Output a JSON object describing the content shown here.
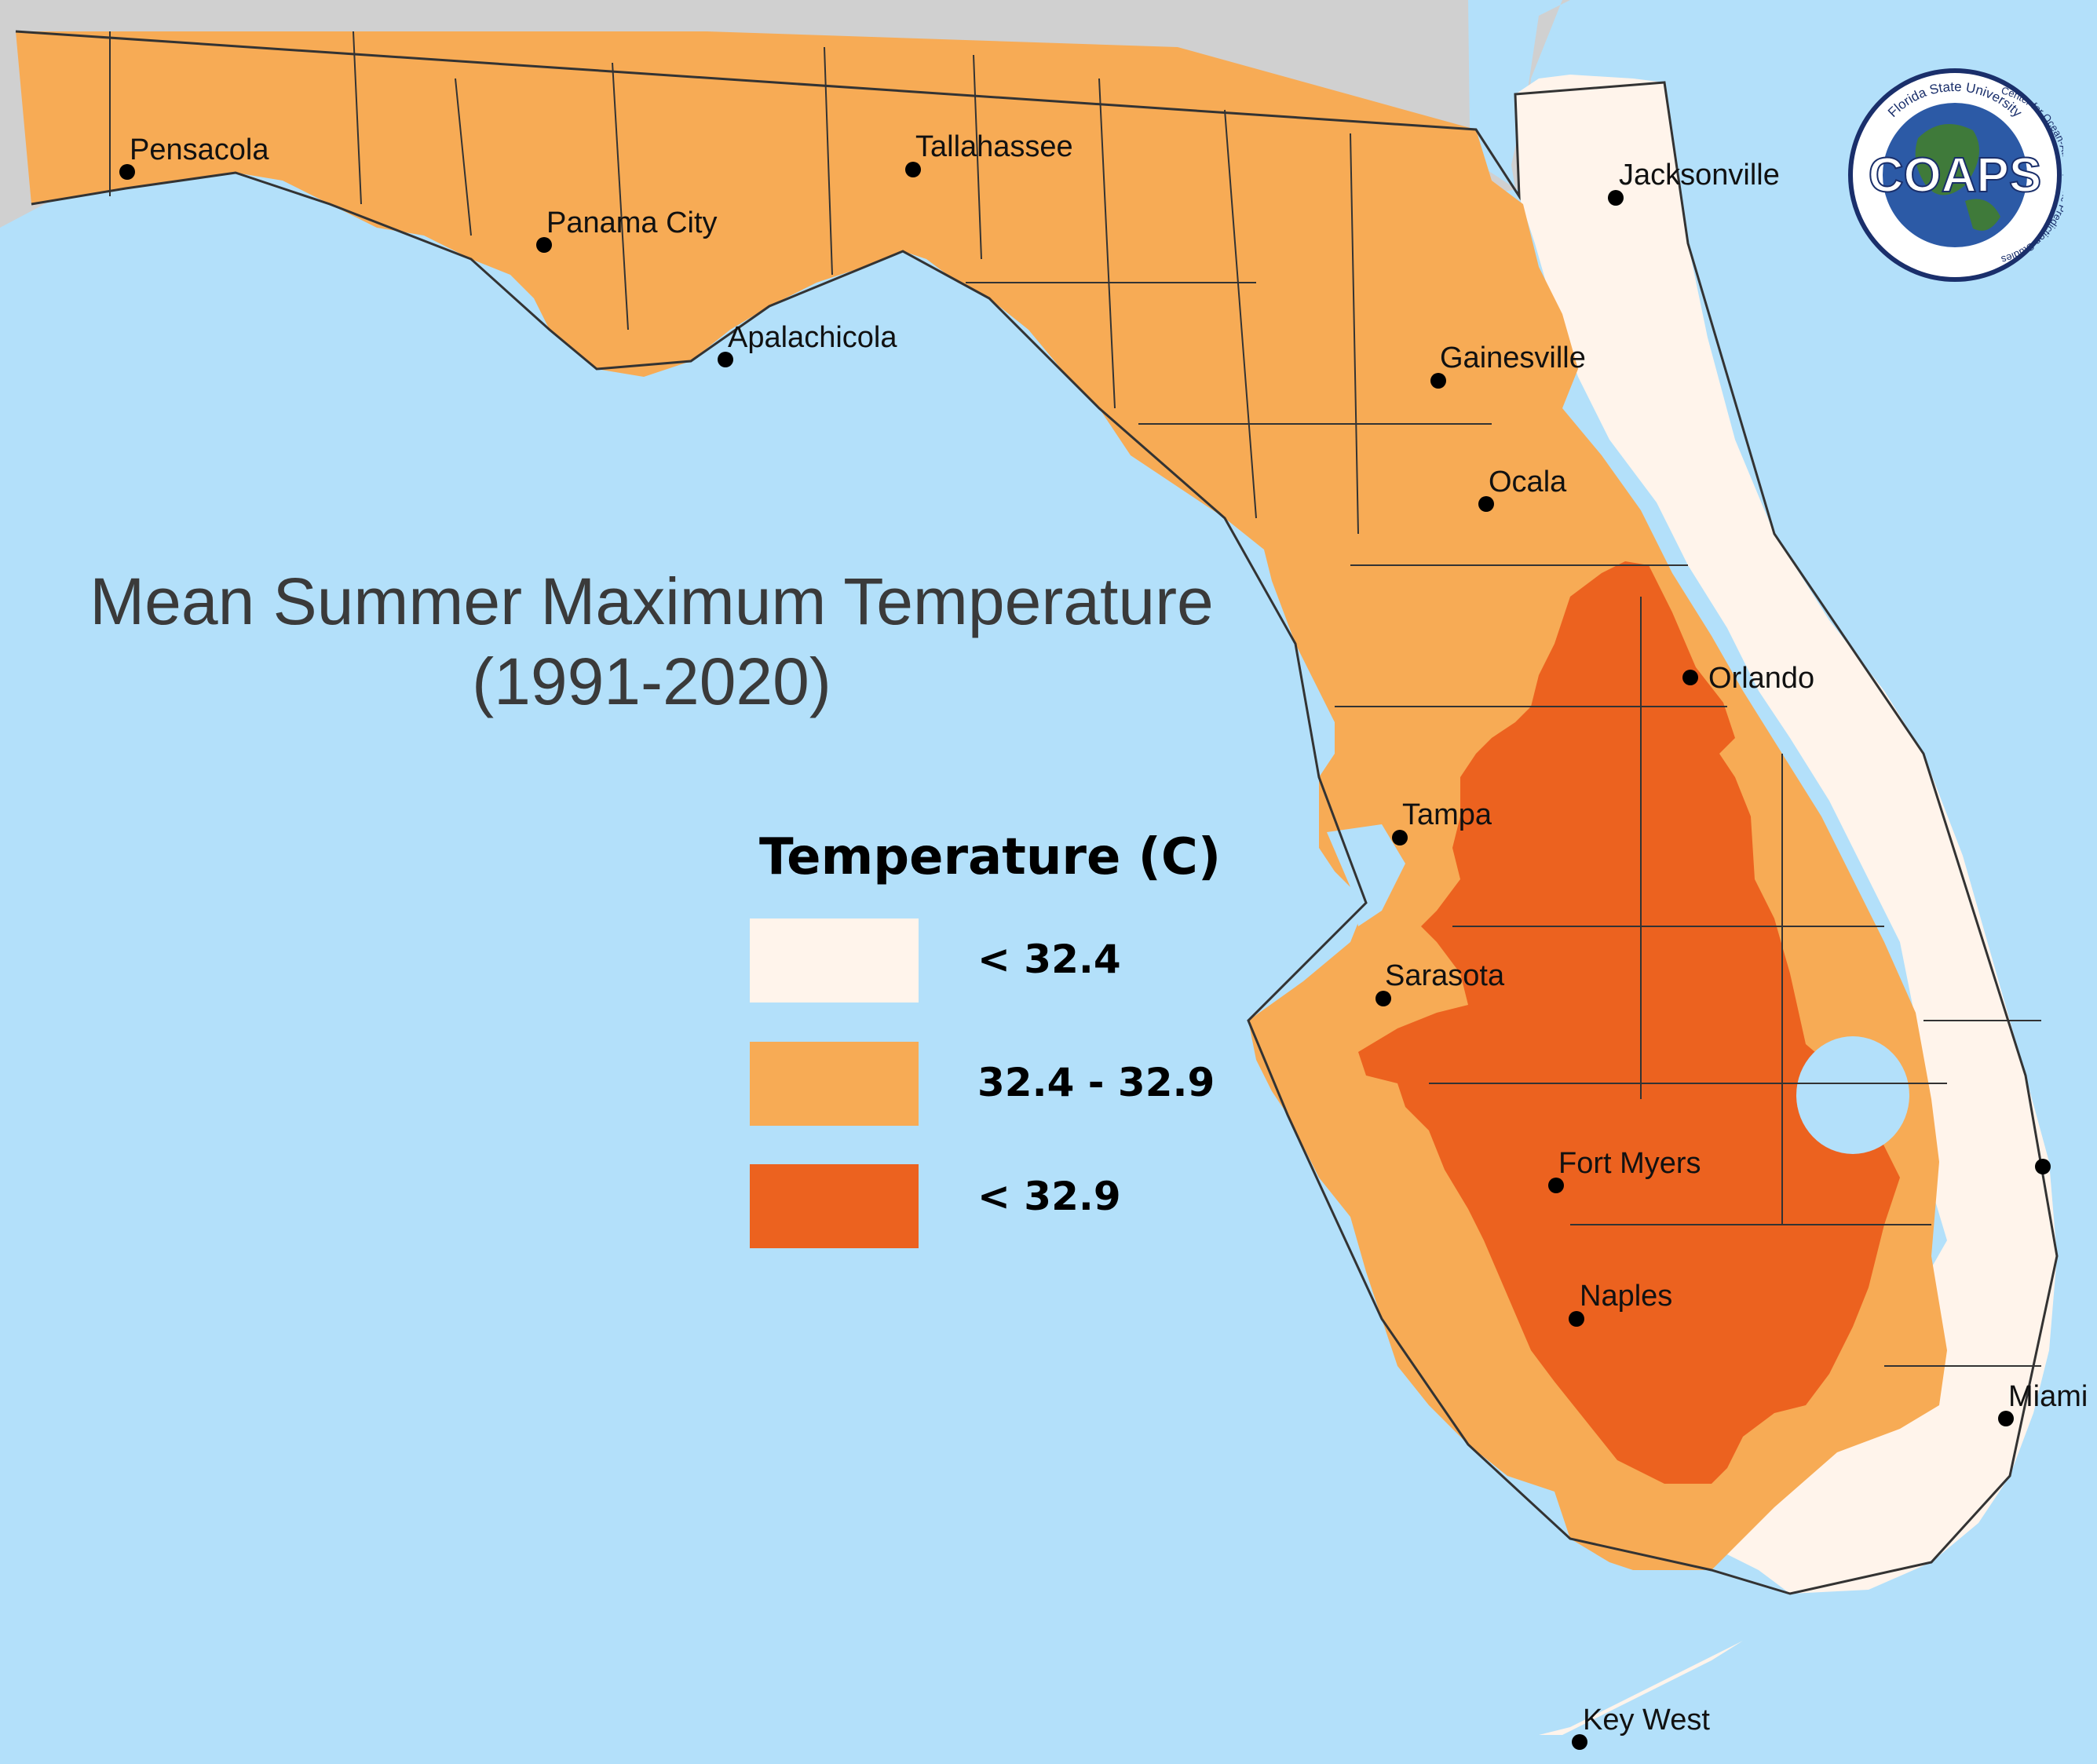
{
  "map": {
    "title": [
      "Mean Summer Maximum Temperature",
      "(1991-2020)"
    ],
    "colors": {
      "water": "#b3e0fa",
      "neighbor_land": "#d0d0d0",
      "county_lines": "#333333"
    },
    "legend": {
      "title": "Temperature (C)",
      "entries": [
        {
          "label": "< 32.4",
          "color": "#fff4eb"
        },
        {
          "label": "32.4 - 32.9",
          "color": "#f7ab55"
        },
        {
          "label": "< 32.9",
          "color": "#ec621f"
        }
      ]
    },
    "cities": [
      {
        "name": "Pensacola"
      },
      {
        "name": "Tallahassee"
      },
      {
        "name": "Panama City"
      },
      {
        "name": "Apalachicola"
      },
      {
        "name": "Jacksonville"
      },
      {
        "name": "Gainesville"
      },
      {
        "name": "Ocala"
      },
      {
        "name": "Orlando"
      },
      {
        "name": "Tampa"
      },
      {
        "name": "Sarasota"
      },
      {
        "name": "Fort Myers"
      },
      {
        "name": "Naples"
      },
      {
        "name": "Miami"
      },
      {
        "name": "Key West"
      }
    ],
    "logo": {
      "text": "COAPS",
      "ring_top": "Florida State University",
      "ring_side": "Center for Ocean-Atmospheric Prediction Studies",
      "icon": "globe-icon"
    }
  }
}
